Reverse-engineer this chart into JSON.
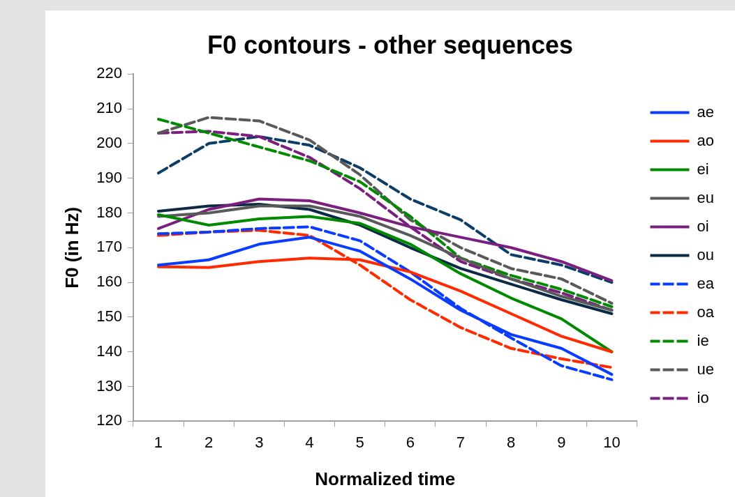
{
  "chart_data": {
    "type": "line",
    "title": "F0 contours - other sequences",
    "xlabel": "Normalized time",
    "ylabel": "F0 (in Hz)",
    "categories": [
      "1",
      "2",
      "3",
      "4",
      "5",
      "6",
      "7",
      "8",
      "9",
      "10"
    ],
    "ylim": [
      120,
      220
    ],
    "yticks": [
      120,
      130,
      140,
      150,
      160,
      170,
      180,
      190,
      200,
      210,
      220
    ],
    "grid": false,
    "legend": "right",
    "marker": "none",
    "series": [
      {
        "name": "ae",
        "color": "#0a3cff",
        "line_style": "solid",
        "values": [
          165,
          166.5,
          171,
          173,
          169,
          161,
          152,
          145,
          141,
          133.5
        ]
      },
      {
        "name": "ao",
        "color": "#ff2a00",
        "line_style": "solid",
        "values": [
          164.5,
          164.3,
          166,
          167,
          166.5,
          163,
          157.5,
          151,
          144.5,
          140
        ]
      },
      {
        "name": "ei",
        "color": "#008a00",
        "line_style": "solid",
        "values": [
          179.5,
          176.5,
          178.3,
          179,
          177,
          171,
          162.5,
          155.5,
          149.5,
          140
        ]
      },
      {
        "name": "eu",
        "color": "#595959",
        "line_style": "solid",
        "values": [
          179,
          180,
          182,
          182,
          179,
          173.5,
          167,
          161,
          156,
          152
        ]
      },
      {
        "name": "oi",
        "color": "#7a1f7f",
        "line_style": "solid",
        "values": [
          175.5,
          181,
          184,
          183.5,
          180,
          176,
          173,
          170,
          166,
          160.5
        ]
      },
      {
        "name": "ou",
        "color": "#0b2a45",
        "line_style": "solid",
        "values": [
          180.5,
          182,
          182.5,
          181,
          176.5,
          170,
          164,
          159.5,
          155,
          151
        ]
      },
      {
        "name": "ea",
        "color": "#0a3cff",
        "line_style": "dashed",
        "values": [
          174,
          174.5,
          175.5,
          176,
          172,
          163,
          152.5,
          144,
          136,
          132
        ]
      },
      {
        "name": "oa",
        "color": "#ff2a00",
        "line_style": "dashed",
        "values": [
          173.5,
          174.5,
          175,
          173.5,
          165,
          155,
          147,
          141,
          138,
          135.5
        ]
      },
      {
        "name": "ie",
        "color": "#008a00",
        "line_style": "dashed",
        "values": [
          207,
          203,
          199,
          195,
          189,
          179,
          167,
          162,
          158,
          153
        ]
      },
      {
        "name": "ue",
        "color": "#595959",
        "line_style": "dashed",
        "values": [
          203,
          207.5,
          206.5,
          201,
          191,
          178,
          170,
          164,
          161,
          154
        ]
      },
      {
        "name": "io",
        "color": "#7a1f7f",
        "line_style": "dashed",
        "values": [
          203,
          203.5,
          202,
          196,
          187,
          176,
          166,
          161,
          157,
          152
        ]
      },
      {
        "color": "#0c3d66",
        "line_style": "dashed",
        "values": [
          191.5,
          200,
          202,
          199.5,
          193,
          184,
          178,
          168,
          165,
          160
        ]
      }
    ]
  }
}
